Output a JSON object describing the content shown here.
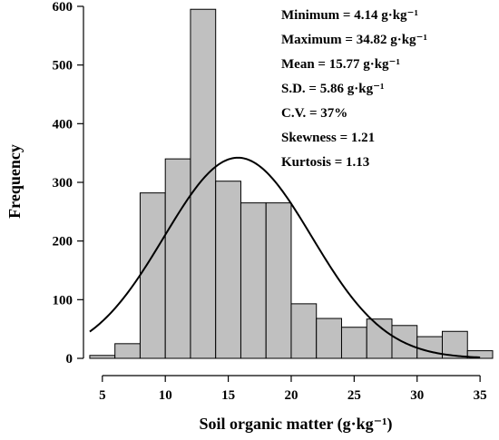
{
  "chart_data": {
    "type": "bar",
    "title": "",
    "xlabel": "Soil organic matter (g·kg⁻¹)",
    "ylabel": "Frequency",
    "xlim": [
      3.5,
      36
    ],
    "ylim": [
      0,
      600
    ],
    "x_ticks": [
      "5",
      "10",
      "15",
      "20",
      "25",
      "30",
      "35"
    ],
    "y_ticks": [
      "0",
      "100",
      "200",
      "300",
      "400",
      "500",
      "600"
    ],
    "bin_width": 2,
    "bins": [
      {
        "start": 4,
        "end": 6,
        "value": 5
      },
      {
        "start": 6,
        "end": 8,
        "value": 25
      },
      {
        "start": 8,
        "end": 10,
        "value": 282
      },
      {
        "start": 10,
        "end": 12,
        "value": 340
      },
      {
        "start": 12,
        "end": 14,
        "value": 595
      },
      {
        "start": 14,
        "end": 16,
        "value": 302
      },
      {
        "start": 16,
        "end": 18,
        "value": 265
      },
      {
        "start": 18,
        "end": 20,
        "value": 265
      },
      {
        "start": 20,
        "end": 22,
        "value": 93
      },
      {
        "start": 22,
        "end": 24,
        "value": 68
      },
      {
        "start": 24,
        "end": 26,
        "value": 53
      },
      {
        "start": 26,
        "end": 28,
        "value": 67
      },
      {
        "start": 28,
        "end": 30,
        "value": 56
      },
      {
        "start": 30,
        "end": 32,
        "value": 37
      },
      {
        "start": 32,
        "end": 34,
        "value": 46
      },
      {
        "start": 34,
        "end": 36,
        "value": 13
      }
    ],
    "normal_curve": {
      "mean": 15.77,
      "sd": 5.86,
      "peak": 342,
      "x_start": 4,
      "x_end": 35
    },
    "grid": false,
    "legend": "none",
    "annotations": [
      "Minimum = 4.14 g·kg⁻¹",
      "Maximum = 34.82 g·kg⁻¹",
      "Mean = 15.77 g·kg⁻¹",
      "S.D. = 5.86 g·kg⁻¹",
      "C.V. = 37%",
      "Skewness = 1.21",
      "Kurtosis = 1.13"
    ],
    "colors": {
      "bar_fill": "#c0c0c0",
      "bar_stroke": "#000000",
      "curve": "#000000"
    }
  }
}
